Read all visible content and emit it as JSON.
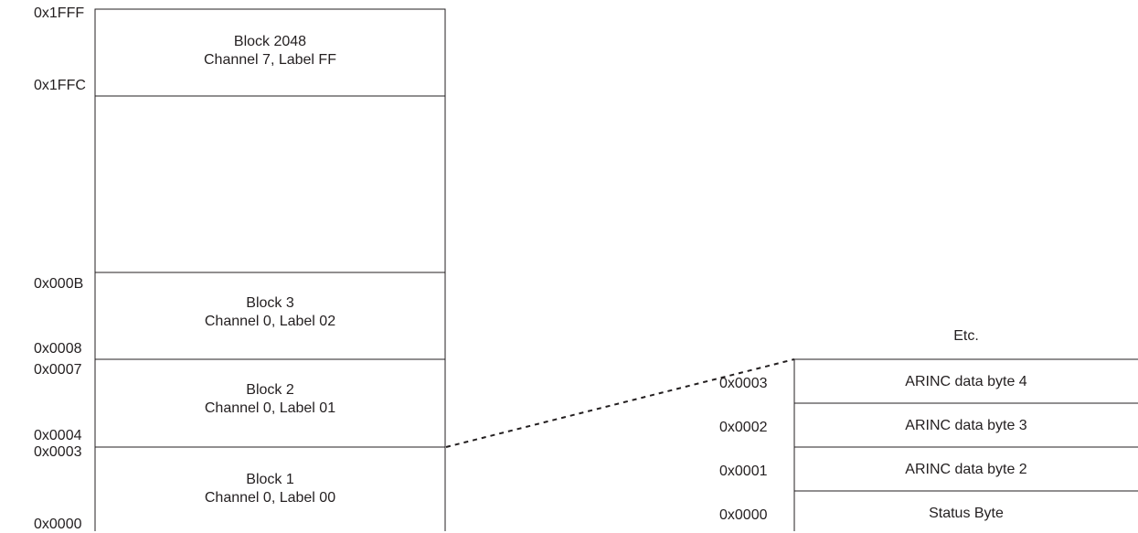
{
  "left_map": {
    "blocks": [
      {
        "title": "Block 2048",
        "subtitle": "Channel 7, Label FF"
      },
      {
        "title": "Block 3",
        "subtitle": "Channel 0, Label 02"
      },
      {
        "title": "Block 2",
        "subtitle": "Channel 0, Label 01"
      },
      {
        "title": "Block 1",
        "subtitle": "Channel 0, Label 00"
      }
    ],
    "addresses": [
      "0x1FFF",
      "0x1FFC",
      "0x000B",
      "0x0008",
      "0x0007",
      "0x0004",
      "0x0003",
      "0x0000"
    ]
  },
  "right_detail": {
    "etc_label": "Etc.",
    "rows": [
      {
        "address": "0x0003",
        "label": "ARINC data byte 4"
      },
      {
        "address": "0x0002",
        "label": "ARINC data byte 3"
      },
      {
        "address": "0x0001",
        "label": "ARINC data byte 2"
      },
      {
        "address": "0x0000",
        "label": "Status Byte"
      }
    ]
  },
  "colors": {
    "line": "#231f20",
    "text": "#231f20",
    "background": "#ffffff"
  }
}
